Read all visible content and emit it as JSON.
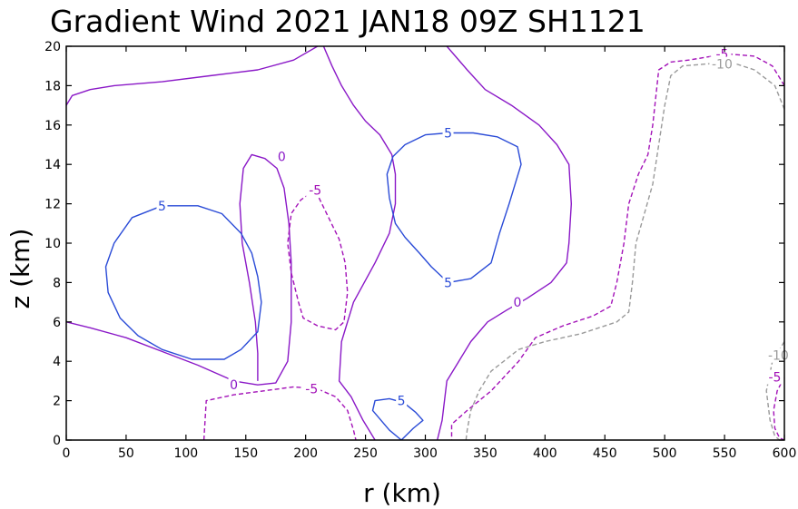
{
  "chart_data": {
    "type": "contour",
    "title": "Gradient Wind 2021 JAN18 09Z  SH1121",
    "xlabel": "r (km)",
    "ylabel": "z (km)",
    "xlim": [
      0,
      600
    ],
    "ylim": [
      0,
      20
    ],
    "x_ticks": [
      0,
      50,
      100,
      150,
      200,
      250,
      300,
      350,
      400,
      450,
      500,
      550,
      600
    ],
    "y_ticks": [
      0,
      2,
      4,
      6,
      8,
      10,
      12,
      14,
      16,
      18,
      20
    ],
    "colors": {
      "pos5": "#2a4bd7",
      "zero": "#8a18c7",
      "neg5": "#a312b8",
      "neg10": "#9a9a9a"
    },
    "contours": [
      {
        "level": 0,
        "style": "solid",
        "color": "zero",
        "points": [
          [
            0,
            17
          ],
          [
            5,
            17.5
          ],
          [
            20,
            17.8
          ],
          [
            40,
            18
          ],
          [
            80,
            18.2
          ],
          [
            120,
            18.5
          ],
          [
            160,
            18.8
          ],
          [
            190,
            19.3
          ],
          [
            210,
            20
          ]
        ]
      },
      {
        "level": 0,
        "style": "solid",
        "color": "zero",
        "points": [
          [
            0,
            6
          ],
          [
            20,
            5.7
          ],
          [
            50,
            5.2
          ],
          [
            80,
            4.5
          ],
          [
            110,
            3.8
          ],
          [
            140,
            3
          ],
          [
            160,
            2.8
          ],
          [
            175,
            2.9
          ],
          [
            185,
            4
          ],
          [
            188,
            6
          ],
          [
            188,
            9
          ],
          [
            186,
            11
          ],
          [
            182,
            12.8
          ],
          [
            176,
            13.8
          ],
          [
            166,
            14.3
          ],
          [
            155,
            14.5
          ],
          [
            148,
            13.8
          ],
          [
            145,
            12
          ],
          [
            147,
            10
          ],
          [
            153,
            8
          ],
          [
            158,
            6
          ],
          [
            160,
            4.4
          ],
          [
            160,
            3
          ]
        ]
      },
      {
        "level": 0,
        "style": "solid",
        "color": "zero",
        "points": [
          [
            318,
            20
          ],
          [
            335,
            18.8
          ],
          [
            350,
            17.8
          ],
          [
            372,
            17
          ],
          [
            395,
            16
          ],
          [
            410,
            15
          ],
          [
            420,
            14
          ],
          [
            422,
            12
          ],
          [
            420,
            10
          ],
          [
            418,
            9
          ],
          [
            405,
            8
          ],
          [
            385,
            7.2
          ],
          [
            368,
            6.6
          ],
          [
            352,
            6
          ],
          [
            338,
            5
          ],
          [
            328,
            4
          ],
          [
            318,
            3
          ],
          [
            314,
            1
          ],
          [
            310,
            0
          ]
        ]
      },
      {
        "level": 0,
        "style": "solid",
        "color": "zero",
        "points": [
          [
            258,
            0
          ],
          [
            248,
            1
          ],
          [
            238,
            2.2
          ],
          [
            228,
            3
          ],
          [
            230,
            5
          ],
          [
            240,
            7
          ],
          [
            258,
            9
          ],
          [
            270,
            10.5
          ],
          [
            275,
            12
          ],
          [
            275,
            13.5
          ],
          [
            272,
            14.5
          ],
          [
            262,
            15.5
          ],
          [
            250,
            16.2
          ],
          [
            240,
            17
          ],
          [
            230,
            18
          ],
          [
            222,
            19
          ],
          [
            215,
            20
          ]
        ]
      },
      {
        "level": 5,
        "style": "solid",
        "color": "pos5",
        "points": [
          [
            80,
            11.9
          ],
          [
            55,
            11.3
          ],
          [
            40,
            10
          ],
          [
            33,
            8.8
          ],
          [
            35,
            7.5
          ],
          [
            45,
            6.2
          ],
          [
            60,
            5.3
          ],
          [
            80,
            4.6
          ],
          [
            105,
            4.1
          ],
          [
            132,
            4.1
          ],
          [
            146,
            4.6
          ],
          [
            160,
            5.5
          ],
          [
            163,
            7
          ],
          [
            160,
            8.3
          ],
          [
            155,
            9.5
          ],
          [
            146,
            10.5
          ],
          [
            130,
            11.5
          ],
          [
            110,
            11.9
          ],
          [
            80,
            11.9
          ]
        ]
      },
      {
        "level": 5,
        "style": "solid",
        "color": "pos5",
        "points": [
          [
            319,
            15.6
          ],
          [
            300,
            15.5
          ],
          [
            283,
            15
          ],
          [
            273,
            14.4
          ],
          [
            268,
            13.5
          ],
          [
            270,
            12.3
          ],
          [
            275,
            11
          ],
          [
            283,
            10.3
          ],
          [
            295,
            9.5
          ],
          [
            305,
            8.8
          ],
          [
            319,
            8
          ],
          [
            338,
            8.2
          ],
          [
            355,
            9
          ],
          [
            362,
            10.5
          ],
          [
            370,
            12
          ],
          [
            380,
            14
          ],
          [
            377,
            14.9
          ],
          [
            360,
            15.4
          ],
          [
            340,
            15.6
          ],
          [
            319,
            15.6
          ]
        ]
      },
      {
        "level": 5,
        "style": "solid",
        "color": "pos5",
        "points": [
          [
            280,
            0
          ],
          [
            270,
            0.5
          ],
          [
            256,
            1.5
          ],
          [
            258,
            2
          ],
          [
            270,
            2.1
          ],
          [
            282,
            1.9
          ],
          [
            292,
            1.4
          ],
          [
            298,
            1
          ],
          [
            290,
            0.6
          ],
          [
            280,
            0
          ]
        ]
      },
      {
        "level": -5,
        "style": "dashed",
        "color": "neg5",
        "points": [
          [
            115,
            0
          ],
          [
            116,
            1
          ],
          [
            117,
            2
          ],
          [
            140,
            2.3
          ],
          [
            165,
            2.5
          ],
          [
            190,
            2.7
          ],
          [
            210,
            2.6
          ],
          [
            225,
            2.2
          ],
          [
            235,
            1.5
          ],
          [
            240,
            0.5
          ],
          [
            242,
            0
          ]
        ]
      },
      {
        "level": -5,
        "style": "dashed",
        "color": "neg5",
        "points": [
          [
            208,
            12.7
          ],
          [
            196,
            12.2
          ],
          [
            188,
            11.5
          ],
          [
            185,
            10
          ],
          [
            188,
            8.5
          ],
          [
            194,
            7
          ],
          [
            198,
            6.2
          ],
          [
            210,
            5.8
          ],
          [
            225,
            5.6
          ],
          [
            232,
            6
          ],
          [
            235,
            7.5
          ],
          [
            233,
            9
          ],
          [
            228,
            10.2
          ],
          [
            220,
            11.2
          ],
          [
            208,
            12.7
          ]
        ]
      },
      {
        "level": -5,
        "style": "dashed",
        "color": "neg5",
        "points": [
          [
            600,
            18
          ],
          [
            590,
            19
          ],
          [
            575,
            19.5
          ],
          [
            555,
            19.6
          ],
          [
            540,
            19.5
          ],
          [
            520,
            19.3
          ],
          [
            505,
            19.2
          ],
          [
            495,
            18.8
          ],
          [
            490,
            16
          ],
          [
            486,
            14.5
          ],
          [
            478,
            13.5
          ],
          [
            470,
            12
          ],
          [
            466,
            10
          ],
          [
            460,
            8
          ],
          [
            455,
            6.8
          ],
          [
            440,
            6.3
          ],
          [
            415,
            5.8
          ],
          [
            392,
            5.2
          ],
          [
            378,
            4
          ],
          [
            355,
            2.5
          ],
          [
            335,
            1.5
          ],
          [
            322,
            0.8
          ],
          [
            322,
            0
          ]
        ]
      },
      {
        "level": -5,
        "style": "dashed",
        "color": "neg5",
        "points": [
          [
            600,
            3.2
          ],
          [
            594,
            2.5
          ],
          [
            591,
            1.5
          ],
          [
            592,
            0.6
          ],
          [
            596,
            0.1
          ],
          [
            600,
            0
          ]
        ]
      },
      {
        "level": -10,
        "style": "dashed",
        "color": "neg10",
        "points": [
          [
            600,
            16.8
          ],
          [
            592,
            18
          ],
          [
            575,
            18.8
          ],
          [
            555,
            19.2
          ],
          [
            535,
            19.1
          ],
          [
            515,
            19
          ],
          [
            505,
            18.5
          ],
          [
            500,
            17
          ],
          [
            495,
            15
          ],
          [
            490,
            13
          ],
          [
            483,
            11.5
          ],
          [
            476,
            10
          ],
          [
            473,
            8
          ],
          [
            470,
            6.5
          ],
          [
            460,
            6
          ],
          [
            430,
            5.4
          ],
          [
            400,
            5
          ],
          [
            378,
            4.6
          ],
          [
            355,
            3.5
          ],
          [
            345,
            2.5
          ],
          [
            338,
            1.5
          ],
          [
            335,
            0.5
          ],
          [
            334,
            0
          ]
        ]
      },
      {
        "level": -10,
        "style": "dashed",
        "color": "neg10",
        "points": [
          [
            600,
            5
          ],
          [
            590,
            4
          ],
          [
            585,
            2.5
          ],
          [
            588,
            1
          ],
          [
            592,
            0.2
          ],
          [
            596,
            0
          ]
        ]
      }
    ],
    "labels": [
      {
        "text": "5",
        "x": 80,
        "y": 11.9,
        "color": "pos5"
      },
      {
        "text": "5",
        "x": 319,
        "y": 15.6,
        "color": "pos5"
      },
      {
        "text": "5",
        "x": 319,
        "y": 8,
        "color": "pos5"
      },
      {
        "text": "5",
        "x": 280,
        "y": 2,
        "color": "pos5"
      },
      {
        "text": "0",
        "x": 180,
        "y": 14.4,
        "color": "zero"
      },
      {
        "text": "0",
        "x": 140,
        "y": 2.8,
        "color": "zero"
      },
      {
        "text": "0",
        "x": 377,
        "y": 7,
        "color": "zero"
      },
      {
        "text": "-5",
        "x": 208,
        "y": 12.7,
        "color": "neg5"
      },
      {
        "text": "-5",
        "x": 205,
        "y": 2.6,
        "color": "neg5"
      },
      {
        "text": "-5",
        "x": 548,
        "y": 19.6,
        "color": "neg5"
      },
      {
        "text": "-5",
        "x": 592,
        "y": 3.2,
        "color": "neg5"
      },
      {
        "text": "-10",
        "x": 548,
        "y": 19.1,
        "color": "neg10"
      },
      {
        "text": "-10",
        "x": 595,
        "y": 4.3,
        "color": "neg10"
      }
    ]
  }
}
